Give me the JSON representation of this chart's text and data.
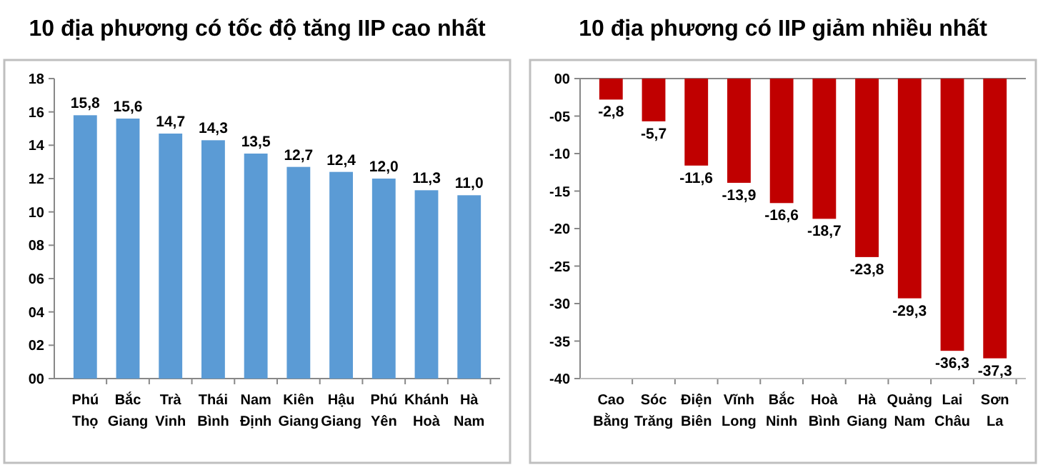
{
  "chart_data": [
    {
      "type": "bar",
      "title": "10 địa phương có tốc độ tăng IIP cao nhất",
      "categories": [
        "Phú Thọ",
        "Bắc Giang",
        "Trà Vinh",
        "Thái Bình",
        "Nam Định",
        "Kiên Giang",
        "Hậu Giang",
        "Phú Yên",
        "Khánh Hoà",
        "Hà Nam"
      ],
      "values": [
        15.8,
        15.6,
        14.7,
        14.3,
        13.5,
        12.7,
        12.4,
        12.0,
        11.3,
        11.0
      ],
      "value_labels": [
        "15,8",
        "15,6",
        "14,7",
        "14,3",
        "13,5",
        "12,7",
        "12,4",
        "12,0",
        "11,3",
        "11,0"
      ],
      "color": "#5b9bd5",
      "ylim": [
        0,
        18
      ],
      "yticks": [
        {
          "value": 0,
          "label": "00"
        },
        {
          "value": 2,
          "label": "02"
        },
        {
          "value": 4,
          "label": "04"
        },
        {
          "value": 6,
          "label": "06"
        },
        {
          "value": 8,
          "label": "08"
        },
        10,
        12,
        14,
        16,
        18
      ],
      "grid": false
    },
    {
      "type": "bar",
      "title": "10 địa phương có IIP giảm nhiều nhất",
      "categories": [
        "Cao Bằng",
        "Sóc Trăng",
        "Điện Biên",
        "Vĩnh Long",
        "Bắc Ninh",
        "Hoà Bình",
        "Hà Giang",
        "Quảng Nam",
        "Lai Châu",
        "Sơn La"
      ],
      "values": [
        -2.8,
        -5.7,
        -11.6,
        -13.9,
        -16.6,
        -18.7,
        -23.8,
        -29.3,
        -36.3,
        -37.3
      ],
      "value_labels": [
        "-2,8",
        "-5,7",
        "-11,6",
        "-13,9",
        "-16,6",
        "-18,7",
        "-23,8",
        "-29,3",
        "-36,3",
        "-37,3"
      ],
      "color": "#c00000",
      "ylim": [
        -40,
        0
      ],
      "yticks": [
        {
          "value": 0,
          "label": "00"
        },
        {
          "value": -5,
          "label": "-05"
        },
        -10,
        -15,
        -20,
        -25,
        -30,
        -35,
        -40
      ],
      "grid": false
    }
  ]
}
